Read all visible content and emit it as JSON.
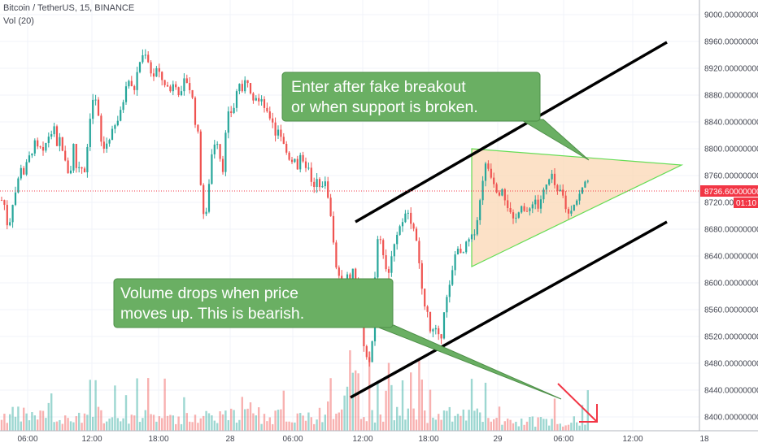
{
  "header": {
    "symbol": "Bitcoin / TetherUS, 15, BINANCE",
    "volume_indicator": "Vol (20)"
  },
  "price_scale": {
    "labels": [
      "9000.00000000",
      "8960.00000000",
      "8920.00000000",
      "8880.00000000",
      "8840.00000000",
      "8800.00000000",
      "8760.00000000",
      "8720.00000000",
      "8680.00000000",
      "8640.00000000",
      "8600.00000000",
      "8560.00000000",
      "8520.00000000",
      "8480.00000000",
      "8440.00000000",
      "8400.00000000"
    ],
    "current_price_label": "8736.60000000",
    "countdown_label": "01:10"
  },
  "time_axis": {
    "labels": [
      "06:00",
      "12:00",
      "18:00",
      "28",
      "06:00",
      "12:00",
      "18:00",
      "29",
      "06:00",
      "12:00",
      "18"
    ]
  },
  "annotations": {
    "top_note": [
      "Enter after fake breakout",
      "or when support is broken."
    ],
    "bottom_note": [
      "Volume drops when price",
      "moves up. This is bearish."
    ]
  },
  "colors": {
    "up": "#26a69a",
    "down": "#ef5350",
    "note_fill": "#6aaf63",
    "note_stroke": "#4e8f48",
    "triangle_fill": "#fbd7b4",
    "triangle_stroke": "#66dd55",
    "current_price": "#f23645",
    "arrow": "#f23645",
    "grid": "#f0f3fa"
  },
  "chart_data": {
    "type": "candlestick",
    "title": "Bitcoin / TetherUS, 15, BINANCE",
    "ylim": [
      8390,
      9020
    ],
    "y_ticks": [
      9000,
      8960,
      8920,
      8880,
      8840,
      8800,
      8760,
      8720,
      8680,
      8640,
      8600,
      8560,
      8520,
      8480,
      8440,
      8400
    ],
    "current_price": 8736.6,
    "grid": true,
    "price_path": [
      [
        0,
        8722
      ],
      [
        4,
        8725
      ],
      [
        8,
        8700
      ],
      [
        10,
        8670
      ],
      [
        14,
        8712
      ],
      [
        20,
        8740
      ],
      [
        26,
        8775
      ],
      [
        30,
        8760
      ],
      [
        34,
        8785
      ],
      [
        38,
        8790
      ],
      [
        42,
        8810
      ],
      [
        46,
        8800
      ],
      [
        50,
        8800
      ],
      [
        54,
        8790
      ],
      [
        58,
        8820
      ],
      [
        62,
        8818
      ],
      [
        66,
        8835
      ],
      [
        70,
        8800
      ],
      [
        74,
        8818
      ],
      [
        80,
        8780
      ],
      [
        86,
        8756
      ],
      [
        90,
        8810
      ],
      [
        94,
        8770
      ],
      [
        98,
        8775
      ],
      [
        104,
        8768
      ],
      [
        108,
        8810
      ],
      [
        112,
        8865
      ],
      [
        116,
        8880
      ],
      [
        120,
        8858
      ],
      [
        124,
        8810
      ],
      [
        128,
        8800
      ],
      [
        132,
        8810
      ],
      [
        136,
        8820
      ],
      [
        140,
        8830
      ],
      [
        144,
        8840
      ],
      [
        150,
        8860
      ],
      [
        156,
        8905
      ],
      [
        160,
        8900
      ],
      [
        164,
        8880
      ],
      [
        168,
        8910
      ],
      [
        172,
        8930
      ],
      [
        176,
        8940
      ],
      [
        180,
        8945
      ],
      [
        184,
        8920
      ],
      [
        188,
        8905
      ],
      [
        192,
        8920
      ],
      [
        198,
        8905
      ],
      [
        204,
        8895
      ],
      [
        210,
        8885
      ],
      [
        214,
        8905
      ],
      [
        218,
        8890
      ],
      [
        222,
        8875
      ],
      [
        226,
        8900
      ],
      [
        230,
        8900
      ],
      [
        236,
        8880
      ],
      [
        240,
        8840
      ],
      [
        244,
        8818
      ],
      [
        248,
        8720
      ],
      [
        252,
        8690
      ],
      [
        256,
        8720
      ],
      [
        258,
        8780
      ],
      [
        262,
        8800
      ],
      [
        266,
        8820
      ],
      [
        270,
        8790
      ],
      [
        274,
        8770
      ],
      [
        278,
        8830
      ],
      [
        282,
        8860
      ],
      [
        286,
        8850
      ],
      [
        290,
        8880
      ],
      [
        294,
        8900
      ],
      [
        298,
        8880
      ],
      [
        302,
        8905
      ],
      [
        306,
        8900
      ],
      [
        310,
        8875
      ],
      [
        314,
        8880
      ],
      [
        318,
        8870
      ],
      [
        322,
        8870
      ],
      [
        326,
        8860
      ],
      [
        330,
        8845
      ],
      [
        334,
        8850
      ],
      [
        338,
        8820
      ],
      [
        342,
        8830
      ],
      [
        346,
        8818
      ],
      [
        350,
        8800
      ],
      [
        354,
        8790
      ],
      [
        358,
        8780
      ],
      [
        362,
        8790
      ],
      [
        366,
        8770
      ],
      [
        370,
        8790
      ],
      [
        374,
        8770
      ],
      [
        378,
        8780
      ],
      [
        382,
        8750
      ],
      [
        386,
        8740
      ],
      [
        390,
        8755
      ],
      [
        394,
        8735
      ],
      [
        398,
        8755
      ],
      [
        402,
        8740
      ],
      [
        406,
        8710
      ],
      [
        410,
        8660
      ],
      [
        414,
        8620
      ],
      [
        418,
        8600
      ],
      [
        422,
        8570
      ],
      [
        426,
        8620
      ],
      [
        430,
        8590
      ],
      [
        434,
        8620
      ],
      [
        438,
        8600
      ],
      [
        442,
        8560
      ],
      [
        446,
        8520
      ],
      [
        450,
        8490
      ],
      [
        454,
        8480
      ],
      [
        458,
        8520
      ],
      [
        462,
        8640
      ],
      [
        466,
        8680
      ],
      [
        470,
        8650
      ],
      [
        474,
        8625
      ],
      [
        478,
        8610
      ],
      [
        482,
        8650
      ],
      [
        486,
        8665
      ],
      [
        490,
        8680
      ],
      [
        494,
        8690
      ],
      [
        498,
        8705
      ],
      [
        500,
        8720
      ],
      [
        502,
        8700
      ],
      [
        506,
        8690
      ],
      [
        510,
        8680
      ],
      [
        514,
        8640
      ],
      [
        518,
        8600
      ],
      [
        522,
        8570
      ],
      [
        526,
        8550
      ],
      [
        530,
        8520
      ],
      [
        534,
        8535
      ],
      [
        538,
        8520
      ],
      [
        542,
        8515
      ],
      [
        546,
        8560
      ],
      [
        550,
        8580
      ],
      [
        554,
        8600
      ],
      [
        558,
        8630
      ],
      [
        562,
        8660
      ],
      [
        566,
        8640
      ],
      [
        570,
        8645
      ],
      [
        574,
        8660
      ],
      [
        578,
        8665
      ],
      [
        582,
        8670
      ],
      [
        586,
        8690
      ],
      [
        590,
        8720
      ],
      [
        594,
        8760
      ],
      [
        598,
        8780
      ],
      [
        602,
        8765
      ],
      [
        606,
        8755
      ],
      [
        610,
        8740
      ],
      [
        614,
        8735
      ],
      [
        618,
        8745
      ],
      [
        622,
        8720
      ],
      [
        626,
        8710
      ],
      [
        630,
        8690
      ],
      [
        634,
        8695
      ],
      [
        638,
        8710
      ],
      [
        642,
        8720
      ],
      [
        646,
        8700
      ],
      [
        650,
        8705
      ],
      [
        654,
        8720
      ],
      [
        658,
        8725
      ],
      [
        662,
        8710
      ],
      [
        666,
        8730
      ],
      [
        670,
        8740
      ],
      [
        674,
        8750
      ],
      [
        678,
        8760
      ],
      [
        682,
        8745
      ],
      [
        686,
        8730
      ],
      [
        690,
        8740
      ],
      [
        694,
        8720
      ],
      [
        698,
        8700
      ],
      [
        702,
        8710
      ],
      [
        706,
        8720
      ],
      [
        710,
        8725
      ],
      [
        714,
        8735
      ],
      [
        718,
        8745
      ],
      [
        722,
        8760
      ],
      [
        726,
        8736.6
      ]
    ]
  }
}
